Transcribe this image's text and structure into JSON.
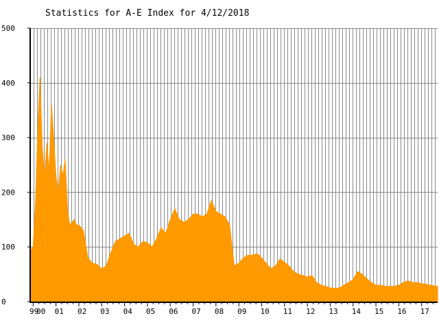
{
  "chart_data": {
    "type": "area",
    "title": "Statistics for A-E Index for 4/12/2018",
    "xlabel": "",
    "ylabel": "",
    "ylim": [
      0,
      500
    ],
    "yticks": [
      0,
      100,
      200,
      300,
      400,
      500
    ],
    "xlim": [
      1999.9,
      2017.7
    ],
    "xtick_labels": [
      {
        "x": 1999.9,
        "label": "99"
      },
      {
        "x": 2000.2,
        "label": "00"
      },
      {
        "x": 2001.0,
        "label": "01"
      },
      {
        "x": 2002.0,
        "label": "02"
      },
      {
        "x": 2003.0,
        "label": "03"
      },
      {
        "x": 2004.0,
        "label": "04"
      },
      {
        "x": 2005.0,
        "label": "05"
      },
      {
        "x": 2006.0,
        "label": "06"
      },
      {
        "x": 2007.0,
        "label": "07"
      },
      {
        "x": 2008.0,
        "label": "08"
      },
      {
        "x": 2009.0,
        "label": "09"
      },
      {
        "x": 2010.0,
        "label": "10"
      },
      {
        "x": 2011.0,
        "label": "11"
      },
      {
        "x": 2012.0,
        "label": "12"
      },
      {
        "x": 2013.0,
        "label": "13"
      },
      {
        "x": 2014.0,
        "label": "14"
      },
      {
        "x": 2015.0,
        "label": "15"
      },
      {
        "x": 2016.0,
        "label": "16"
      },
      {
        "x": 2017.0,
        "label": "17"
      }
    ],
    "grid": true,
    "fill_color": "#ff9900",
    "series": [
      {
        "name": "",
        "x": [
          1999.9,
          2000.0,
          2000.1,
          2000.2,
          2000.3,
          2000.4,
          2000.5,
          2000.6,
          2000.7,
          2000.8,
          2000.9,
          2001.0,
          2001.1,
          2001.2,
          2001.3,
          2001.4,
          2001.5,
          2001.6,
          2001.7,
          2001.8,
          2001.9,
          2002.0,
          2002.2,
          2002.4,
          2002.6,
          2002.8,
          2003.0,
          2003.2,
          2003.4,
          2003.6,
          2003.8,
          2004.0,
          2004.2,
          2004.4,
          2004.6,
          2004.8,
          2005.0,
          2005.2,
          2005.4,
          2005.6,
          2005.8,
          2006.0,
          2006.2,
          2006.4,
          2006.6,
          2006.8,
          2007.0,
          2007.2,
          2007.4,
          2007.6,
          2007.8,
          2008.0,
          2008.2,
          2008.4,
          2008.6,
          2008.8,
          2009.0,
          2009.2,
          2009.4,
          2009.6,
          2009.8,
          2010.0,
          2010.2,
          2010.4,
          2010.6,
          2010.8,
          2011.0,
          2011.2,
          2011.4,
          2011.6,
          2011.8,
          2012.0,
          2012.2,
          2012.4,
          2012.6,
          2012.8,
          2013.0,
          2013.2,
          2013.4,
          2013.6,
          2013.8,
          2014.0,
          2014.2,
          2014.4,
          2014.6,
          2014.8,
          2015.0,
          2015.2,
          2015.4,
          2015.6,
          2015.8,
          2016.0,
          2016.2,
          2016.4,
          2016.6,
          2016.8,
          2017.0,
          2017.2,
          2017.4,
          2017.7
        ],
        "y": [
          95,
          100,
          180,
          315,
          410,
          280,
          230,
          290,
          240,
          360,
          300,
          230,
          200,
          250,
          230,
          260,
          170,
          140,
          145,
          150,
          140,
          140,
          130,
          80,
          70,
          68,
          60,
          65,
          90,
          110,
          115,
          120,
          125,
          105,
          100,
          110,
          108,
          100,
          115,
          135,
          125,
          150,
          170,
          150,
          145,
          150,
          160,
          160,
          155,
          160,
          185,
          165,
          160,
          155,
          140,
          65,
          70,
          80,
          85,
          85,
          88,
          80,
          70,
          60,
          65,
          78,
          72,
          65,
          55,
          50,
          48,
          45,
          48,
          35,
          30,
          28,
          25,
          24,
          25,
          30,
          35,
          40,
          55,
          50,
          42,
          35,
          30,
          30,
          28,
          28,
          28,
          30,
          35,
          38,
          35,
          35,
          33,
          32,
          30,
          28
        ]
      }
    ]
  }
}
